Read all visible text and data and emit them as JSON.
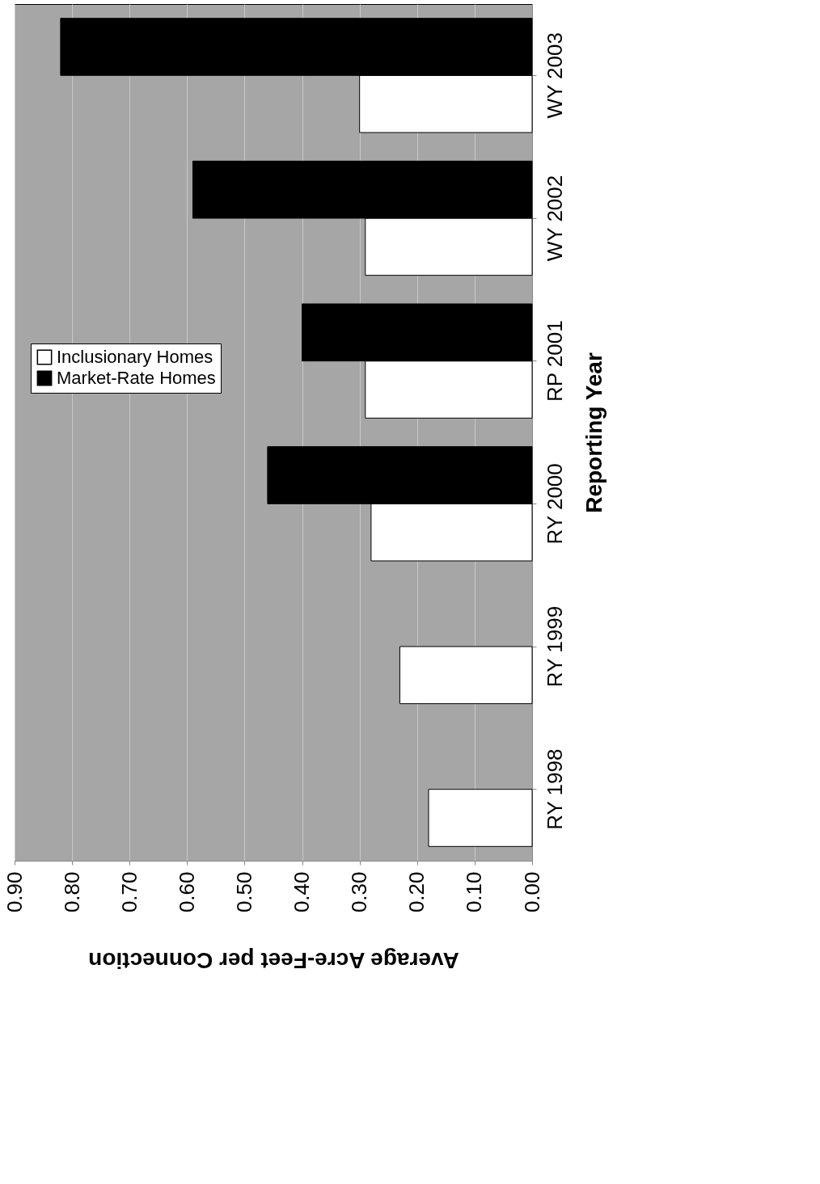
{
  "chart_data": {
    "type": "bar",
    "orientation": "horizontal",
    "xlabel": "Average Acre-Feet per Connection",
    "ylabel": "Reporting Year",
    "categories": [
      "WY 2003",
      "WY 2002",
      "RP 2001",
      "RY 2000",
      "RY 1999",
      "RY 1998"
    ],
    "series": [
      {
        "name": "Inclusionary Homes",
        "color": "#ffffff",
        "values": [
          0.3,
          0.29,
          0.29,
          0.28,
          0.23,
          0.18
        ]
      },
      {
        "name": "Market-Rate Homes",
        "color": "#000000",
        "values": [
          0.82,
          0.59,
          0.4,
          0.46,
          null,
          null
        ]
      }
    ],
    "xlim": [
      0.9,
      0
    ],
    "xticks": [
      {
        "value": 0.9,
        "label": "0.90"
      },
      {
        "value": 0.8,
        "label": "0.80"
      },
      {
        "value": 0.7,
        "label": "0.70"
      },
      {
        "value": 0.6,
        "label": "0.60"
      },
      {
        "value": 0.5,
        "label": "0.50"
      },
      {
        "value": 0.4,
        "label": "0.40"
      },
      {
        "value": 0.3,
        "label": "0.30"
      },
      {
        "value": 0.2,
        "label": "0.20"
      },
      {
        "value": 0.1,
        "label": "0.10"
      },
      {
        "value": 0,
        "label": "0.00"
      }
    ],
    "grid": "x",
    "legend": "left"
  }
}
